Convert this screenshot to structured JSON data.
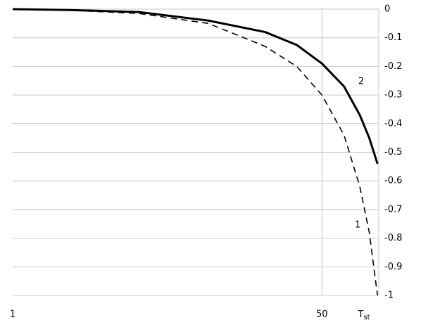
{
  "chart_data": {
    "type": "line",
    "x_label": "T",
    "x_label_sub": "st",
    "x": [
      1,
      10,
      21,
      32,
      41,
      46,
      50,
      53.5,
      56,
      57.5,
      58.8
    ],
    "series": [
      {
        "name": "1",
        "color": "#000000",
        "dashed": true,
        "values": [
          0,
          -0.004,
          -0.015,
          -0.05,
          -0.13,
          -0.2,
          -0.3,
          -0.44,
          -0.62,
          -0.78,
          -1.0
        ]
      },
      {
        "name": "2",
        "color": "#000000",
        "dashed": false,
        "values": [
          0,
          -0.003,
          -0.01,
          -0.04,
          -0.08,
          -0.125,
          -0.19,
          -0.27,
          -0.37,
          -0.45,
          -0.54
        ]
      }
    ],
    "xlim": [
      1,
      59
    ],
    "xticks": [
      1,
      50
    ],
    "ylim": [
      -1,
      0
    ],
    "yticks": [
      0,
      -0.1,
      -0.2,
      -0.3,
      -0.4,
      -0.5,
      -0.6,
      -0.7,
      -0.8,
      -0.9,
      -1
    ],
    "grid": true
  }
}
